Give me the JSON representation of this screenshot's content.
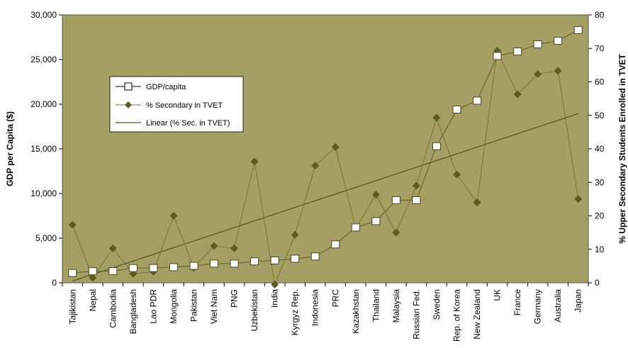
{
  "chart_data": {
    "type": "line",
    "categories": [
      "Tajikistan",
      "Nepal",
      "Cambodia",
      "Bangladesh",
      "Lao PDR",
      "Mongolia",
      "Pakistan",
      "Viet Nam",
      "PNG",
      "Uzbekistan",
      "India",
      "Kyrgyz Rep.",
      "Indonesia",
      "PRC",
      "Kazakhstan",
      "Thailand",
      "Malaysia",
      "Russian Fed.",
      "Sweden",
      "Rep. of Korea",
      "New Zealand",
      "UK",
      "France",
      "Germany",
      "Australia",
      "Japan"
    ],
    "ylabel": "GDP per Capita ($)",
    "y2label": "% Upper Secondary Students Enrolled in TVET",
    "ylim": [
      0,
      30000
    ],
    "y2lim": [
      0,
      80
    ],
    "yticks": [
      "0",
      "5,000",
      "10,000",
      "15,000",
      "20,000",
      "25,000",
      "30,000"
    ],
    "y2ticks": [
      "0",
      "10",
      "20",
      "30",
      "40",
      "50",
      "60",
      "70",
      "80"
    ],
    "legend_position": "upper-left",
    "plot_background": "#a59f63",
    "series": [
      {
        "name": "GDP/capita",
        "axis": "left",
        "marker": "square",
        "color": "#6b6431",
        "values": [
          1100,
          1300,
          1300,
          1650,
          1650,
          1750,
          1900,
          2150,
          2150,
          2400,
          2500,
          2700,
          2950,
          4300,
          6200,
          6900,
          9250,
          9250,
          15300,
          19400,
          20400,
          25400,
          25900,
          26700,
          27100,
          28300
        ]
      },
      {
        "name": "% Secondary in TVET",
        "axis": "right",
        "marker": "diamond",
        "color": "#5d5a22",
        "values": [
          17.3,
          1.5,
          10.3,
          2.7,
          3.3,
          20,
          4.5,
          11,
          10.3,
          36.2,
          -0.5,
          14.3,
          35,
          40.5,
          16.3,
          26.3,
          15,
          29,
          49.3,
          32.3,
          24,
          69.3,
          56.3,
          62.3,
          63.3,
          25
        ]
      },
      {
        "name": "Linear (% Sec. in TVET)",
        "axis": "right",
        "marker": "none",
        "color": "#5a5626",
        "values": [
          0.5,
          2.5,
          4.5,
          6.5,
          8.5,
          10.5,
          12.5,
          14.5,
          16.5,
          18.5,
          20.5,
          22.5,
          24.5,
          26.5,
          28.5,
          30.5,
          32.5,
          34.5,
          36.5,
          38.5,
          40.5,
          42.5,
          44.5,
          46.5,
          48.5,
          50.5
        ]
      }
    ]
  }
}
